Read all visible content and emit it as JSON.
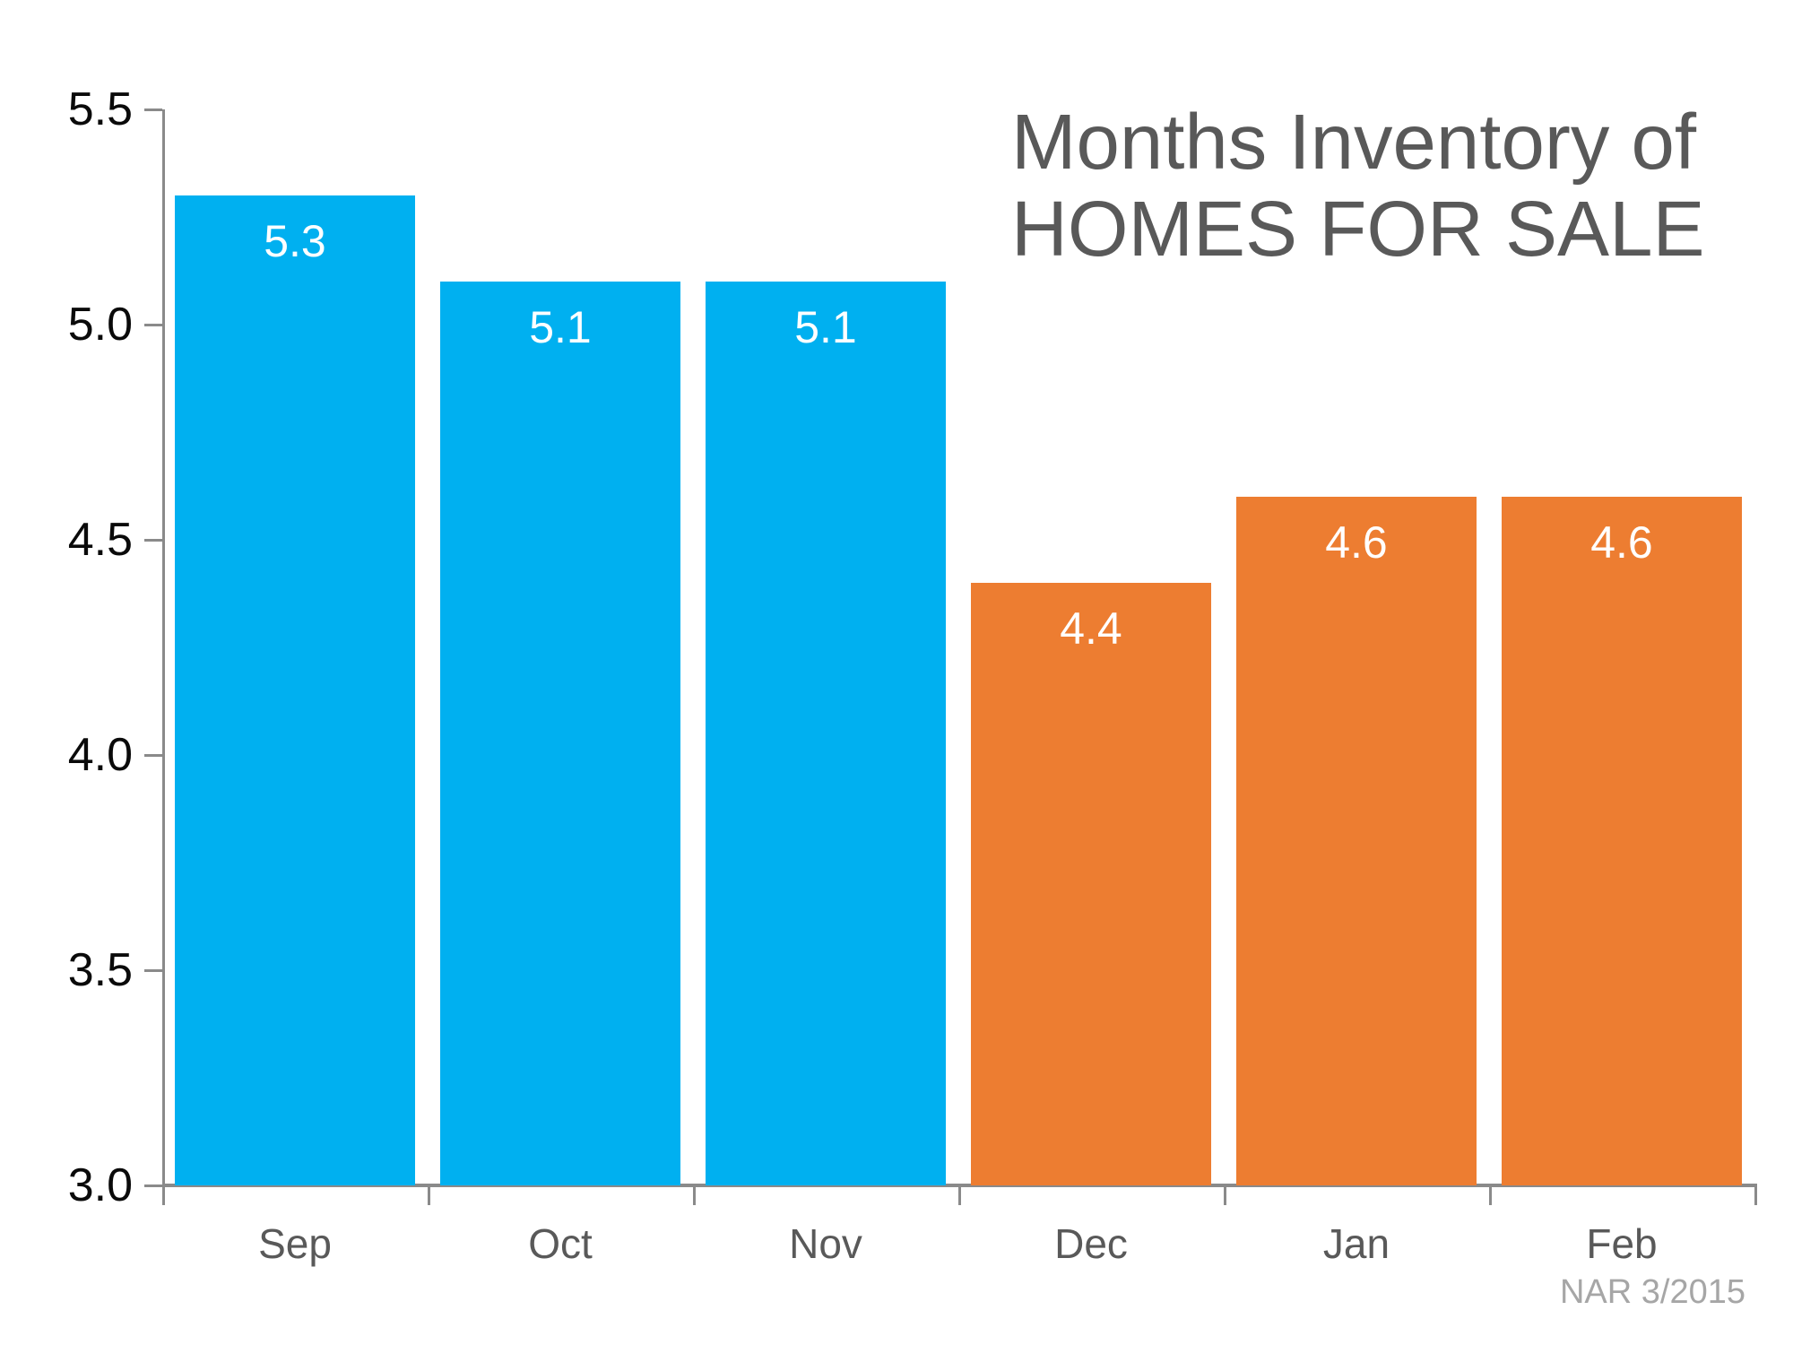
{
  "title": {
    "line1": "Months Inventory of",
    "line2": "HOMES FOR SALE"
  },
  "source": "NAR 3/2015",
  "colors": {
    "bar_blue": "#00B0F0",
    "bar_orange": "#ED7D31",
    "title_gray": "#595959",
    "month_label_gray": "#595959",
    "axis_gray": "#8A8A8A",
    "ytick_label_black": "#0A0A0A",
    "value_label_white": "#FFFFFF",
    "source_gray": "#A6A6A6"
  },
  "chart_data": {
    "type": "bar",
    "title": "Months Inventory of HOMES FOR SALE",
    "categories": [
      "Sep",
      "Oct",
      "Nov",
      "Dec",
      "Jan",
      "Feb"
    ],
    "values": [
      5.3,
      5.1,
      5.1,
      4.4,
      4.6,
      4.6
    ],
    "value_labels": [
      "5.3",
      "5.1",
      "5.1",
      "4.4",
      "4.6",
      "4.6"
    ],
    "bar_colors": [
      "#00B0F0",
      "#00B0F0",
      "#00B0F0",
      "#ED7D31",
      "#ED7D31",
      "#ED7D31"
    ],
    "series": [
      {
        "name": "Months Inventory",
        "values": [
          5.3,
          5.1,
          5.1,
          4.4,
          4.6,
          4.6
        ]
      }
    ],
    "xlabel": "",
    "ylabel": "",
    "ylim": [
      3.0,
      5.5
    ],
    "yticks": [
      5.5,
      5.0,
      4.5,
      4.0,
      3.5,
      3.0
    ],
    "ytick_labels": [
      "5.5",
      "5.0",
      "4.5",
      "4.0",
      "3.5",
      "3.0"
    ],
    "grid": false,
    "legend": false,
    "source": "NAR 3/2015"
  }
}
